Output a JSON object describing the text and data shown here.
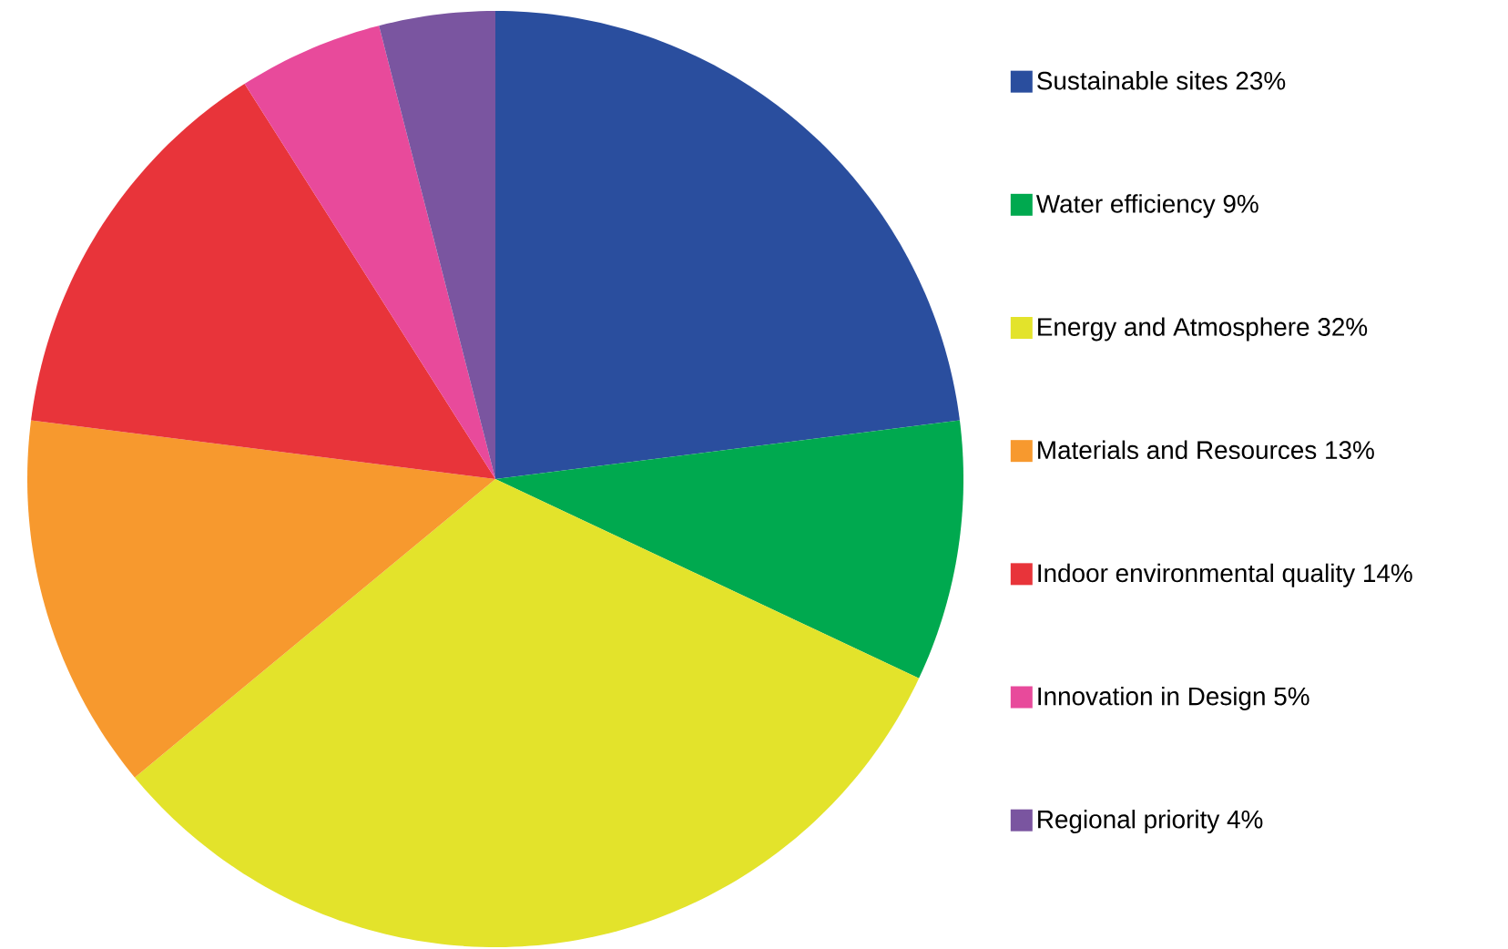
{
  "chart_data": {
    "type": "pie",
    "legend": "right",
    "categories": [
      "Sustainable sites 23%",
      "Water efficiency 9%",
      "Energy and Atmosphere 32%",
      "Materials and Resources 13%",
      "Indoor environmental quality  14%",
      "Innovation in Design  5%",
      "Regional priority 4%"
    ],
    "values": [
      23,
      9,
      32,
      13,
      14,
      5,
      4
    ],
    "colors": [
      "#2a4e9e",
      "#00a94f",
      "#e3e32b",
      "#f7992e",
      "#e8343a",
      "#e84a9b",
      "#7a55a0"
    ]
  }
}
